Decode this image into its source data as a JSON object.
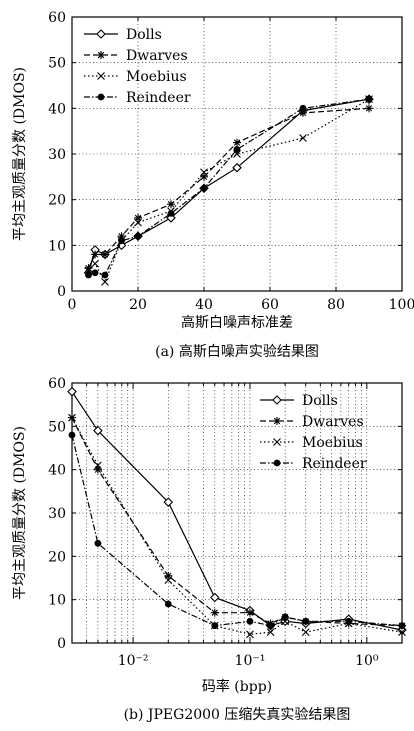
{
  "chart_data": [
    {
      "type": "line",
      "caption": "(a) 高斯白噪声实验结果图",
      "xlabel": "高斯白噪声标准差",
      "ylabel": "平均主观质量分数 (DMOS)",
      "xlim": [
        0,
        100
      ],
      "ylim": [
        0,
        60
      ],
      "xscale": "linear",
      "grid": "dotted",
      "legend_position": "top-left",
      "x_ticks": [
        "0",
        "20",
        "40",
        "60",
        "80",
        "100"
      ],
      "y_ticks": [
        "0",
        "10",
        "20",
        "30",
        "40",
        "50",
        "60"
      ],
      "series": [
        {
          "name": "Dolls",
          "marker": "diamond",
          "dash": "solid",
          "x": [
            5,
            7,
            10,
            15,
            20,
            30,
            40,
            50,
            70,
            90
          ],
          "y": [
            4,
            9,
            8,
            10,
            12,
            16,
            22.5,
            27,
            39.5,
            42
          ]
        },
        {
          "name": "Dwarves",
          "marker": "asterisk",
          "dash": "dashed",
          "x": [
            5,
            7,
            10,
            15,
            20,
            30,
            40,
            50,
            70,
            90
          ],
          "y": [
            5,
            8,
            8,
            12,
            16,
            19,
            25,
            32.5,
            39,
            40
          ]
        },
        {
          "name": "Moebius",
          "marker": "cross",
          "dash": "dotted",
          "x": [
            5,
            7,
            10,
            15,
            20,
            30,
            40,
            50,
            70,
            90
          ],
          "y": [
            4.5,
            6,
            2,
            11,
            15,
            17.5,
            26,
            30,
            33.5,
            42
          ]
        },
        {
          "name": "Reindeer",
          "marker": "circle",
          "dash": "dashdot",
          "x": [
            5,
            7,
            10,
            15,
            20,
            30,
            40,
            50,
            70,
            90
          ],
          "y": [
            3.5,
            4,
            3.5,
            11,
            12,
            17,
            22.5,
            31,
            40,
            42
          ]
        }
      ]
    },
    {
      "type": "line",
      "caption": "(b) JPEG2000 压缩失真实验结果图",
      "xlabel": "码率 (bpp)",
      "ylabel": "平均主观质量分数 (DMOS)",
      "xlim": [
        0.003,
        2
      ],
      "ylim": [
        0,
        60
      ],
      "xscale": "log",
      "grid": "dotted",
      "legend_position": "top-right",
      "x_tick_values": [
        0.01,
        0.1,
        1
      ],
      "x_ticks": [
        "10⁻²",
        "10⁻¹",
        "10⁰"
      ],
      "y_ticks": [
        "0",
        "10",
        "20",
        "30",
        "40",
        "50",
        "60"
      ],
      "series": [
        {
          "name": "Dolls",
          "marker": "diamond",
          "dash": "solid",
          "x": [
            0.003,
            0.005,
            0.02,
            0.05,
            0.1,
            0.15,
            0.2,
            0.3,
            0.7,
            2
          ],
          "y": [
            58,
            49,
            32.5,
            10.5,
            7.5,
            4,
            5,
            4.5,
            5.5,
            3
          ]
        },
        {
          "name": "Dwarves",
          "marker": "asterisk",
          "dash": "dashed",
          "x": [
            0.003,
            0.005,
            0.02,
            0.05,
            0.1,
            0.15,
            0.2,
            0.3,
            0.7,
            2
          ],
          "y": [
            52,
            40,
            15.5,
            7,
            7,
            4.5,
            6,
            5,
            4.5,
            4
          ]
        },
        {
          "name": "Moebius",
          "marker": "cross",
          "dash": "dotted",
          "x": [
            0.003,
            0.005,
            0.02,
            0.05,
            0.1,
            0.15,
            0.2,
            0.3,
            0.7,
            2
          ],
          "y": [
            52,
            41,
            14.5,
            4,
            2,
            2.5,
            5,
            2.5,
            4.5,
            2.5
          ]
        },
        {
          "name": "Reindeer",
          "marker": "circle",
          "dash": "dashdot",
          "x": [
            0.003,
            0.005,
            0.02,
            0.05,
            0.1,
            0.15,
            0.2,
            0.3,
            0.7,
            2
          ],
          "y": [
            48,
            23,
            9,
            4,
            5,
            4,
            6,
            5,
            5,
            4
          ]
        }
      ]
    }
  ]
}
